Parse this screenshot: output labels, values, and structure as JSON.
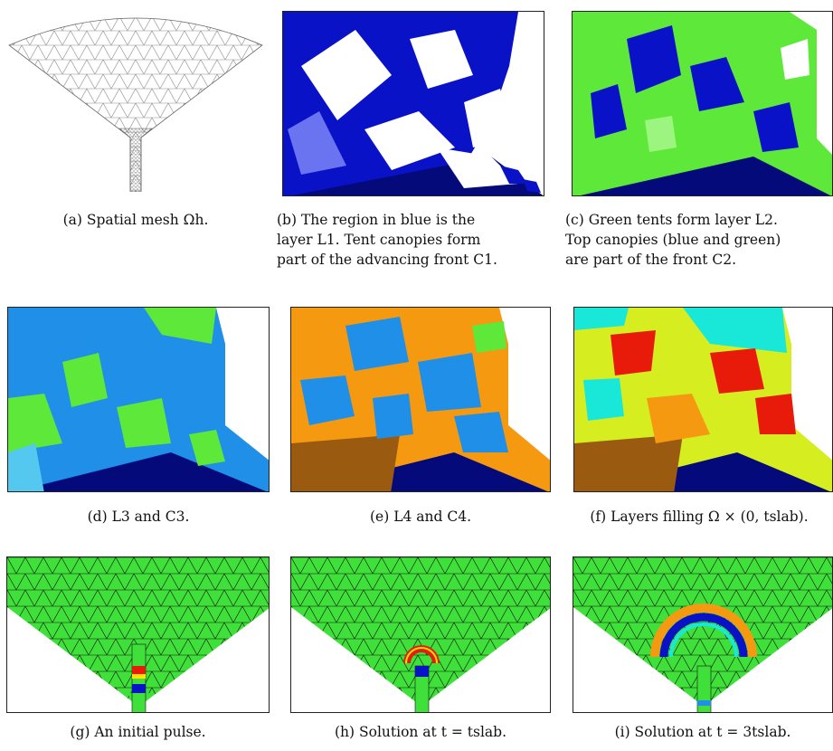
{
  "figure": {
    "panels": [
      {
        "id": "a",
        "caption_lines": [
          "(a) Spatial mesh Ωh."
        ]
      },
      {
        "id": "b",
        "caption_lines": [
          "(b) The region in blue is the",
          "layer L1. Tent canopies form",
          "part of the advancing front C1."
        ]
      },
      {
        "id": "c",
        "caption_lines": [
          "(c) Green tents form layer L2.",
          "Top canopies (blue and green)",
          "are part of the front C2."
        ]
      },
      {
        "id": "d",
        "caption_lines": [
          "(d) L3 and C3."
        ]
      },
      {
        "id": "e",
        "caption_lines": [
          "(e) L4 and C4."
        ]
      },
      {
        "id": "f",
        "caption_lines": [
          "(f) Layers filling Ω × (0, tslab)."
        ]
      },
      {
        "id": "g",
        "caption_lines": [
          "(g) An initial pulse."
        ]
      },
      {
        "id": "h",
        "caption_lines": [
          "(h) Solution at t = tslab."
        ]
      },
      {
        "id": "i",
        "caption_lines": [
          "(i) Solution at t = 3tslab."
        ]
      }
    ],
    "colors": {
      "blue_layer": "#0a12c8",
      "green_layer": "#5ee83a",
      "sky_layer": "#1f8fe8",
      "orange_layer": "#f59a10",
      "red_layer": "#e81a0a",
      "yellow_layer": "#d6ee20",
      "cyan_layer": "#19e8d8",
      "field_green": "#3fe03a"
    }
  }
}
